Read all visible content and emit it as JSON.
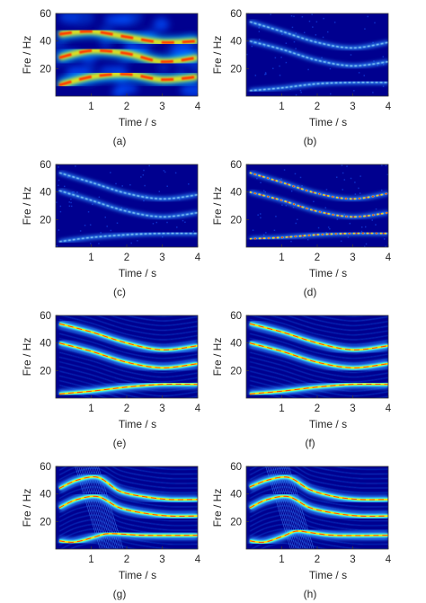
{
  "chart_data": [
    {
      "type": "heatmap",
      "panel_label": "(a)",
      "xlabel": "Time / s",
      "ylabel": "Fre / Hz",
      "xlim": [
        0,
        4
      ],
      "ylim": [
        0,
        60
      ],
      "xticks": [
        "1",
        "2",
        "3",
        "4"
      ],
      "yticks": [
        "20",
        "40",
        "60"
      ],
      "colormap": "jet",
      "style": "blurred",
      "components": [
        {
          "t": [
            0.1,
            1.0,
            2.0,
            3.0,
            4.0
          ],
          "f": [
            45,
            47,
            43,
            39,
            40
          ]
        },
        {
          "t": [
            0.1,
            1.0,
            2.0,
            3.0,
            4.0
          ],
          "f": [
            28,
            33,
            31,
            25,
            28
          ]
        },
        {
          "t": [
            0.1,
            1.0,
            2.0,
            3.0,
            4.0
          ],
          "f": [
            8,
            14,
            16,
            12,
            14
          ]
        }
      ]
    },
    {
      "type": "heatmap",
      "panel_label": "(b)",
      "xlabel": "Time / s",
      "ylabel": "Fre / Hz",
      "xlim": [
        0,
        4
      ],
      "ylim": [
        0,
        60
      ],
      "xticks": [
        "1",
        "2",
        "3",
        "4"
      ],
      "yticks": [
        "20",
        "40",
        "60"
      ],
      "colormap": "jet",
      "style": "faint",
      "components": [
        {
          "t": [
            0.1,
            1.0,
            2.0,
            3.0,
            4.0
          ],
          "f": [
            54,
            47,
            39,
            35,
            39
          ]
        },
        {
          "t": [
            0.1,
            1.0,
            2.0,
            3.0,
            4.0
          ],
          "f": [
            40,
            34,
            26,
            22,
            25
          ]
        },
        {
          "t": [
            0.1,
            1.0,
            2.0,
            3.0,
            4.0
          ],
          "f": [
            4,
            6,
            9,
            10,
            10
          ]
        }
      ]
    },
    {
      "type": "heatmap",
      "panel_label": "(c)",
      "xlabel": "Time / s",
      "ylabel": "Fre / Hz",
      "xlim": [
        0,
        4
      ],
      "ylim": [
        0,
        60
      ],
      "xticks": [
        "1",
        "2",
        "3",
        "4"
      ],
      "yticks": [
        "20",
        "40",
        "60"
      ],
      "colormap": "jet",
      "style": "faint",
      "components": [
        {
          "t": [
            0.1,
            1.0,
            2.0,
            3.0,
            4.0
          ],
          "f": [
            54,
            47,
            39,
            35,
            38
          ]
        },
        {
          "t": [
            0.1,
            1.0,
            2.0,
            3.0,
            4.0
          ],
          "f": [
            41,
            34,
            26,
            22,
            25
          ]
        },
        {
          "t": [
            0.1,
            1.0,
            2.0,
            3.0,
            4.0
          ],
          "f": [
            4,
            7,
            9,
            10,
            10
          ]
        }
      ]
    },
    {
      "type": "heatmap",
      "panel_label": "(d)",
      "xlabel": "Time / s",
      "ylabel": "Fre / Hz",
      "xlim": [
        0,
        4
      ],
      "ylim": [
        0,
        60
      ],
      "xticks": [
        "1",
        "2",
        "3",
        "4"
      ],
      "yticks": [
        "20",
        "40",
        "60"
      ],
      "colormap": "jet",
      "style": "dotted",
      "components": [
        {
          "t": [
            0.1,
            1.0,
            2.0,
            3.0,
            4.0
          ],
          "f": [
            54,
            47,
            39,
            35,
            39
          ]
        },
        {
          "t": [
            0.1,
            1.0,
            2.0,
            3.0,
            4.0
          ],
          "f": [
            40,
            34,
            26,
            22,
            25
          ]
        },
        {
          "t": [
            0.1,
            1.0,
            2.0,
            3.0,
            4.0
          ],
          "f": [
            6,
            7,
            9,
            10,
            10
          ]
        }
      ]
    },
    {
      "type": "heatmap",
      "panel_label": "(e)",
      "xlabel": "Time / s",
      "ylabel": "Fre / Hz",
      "xlim": [
        0,
        4
      ],
      "ylim": [
        0,
        60
      ],
      "xticks": [
        "1",
        "2",
        "3",
        "4"
      ],
      "yticks": [
        "20",
        "40",
        "60"
      ],
      "colormap": "jet",
      "style": "sharp",
      "components": [
        {
          "t": [
            0.1,
            1.0,
            2.0,
            3.0,
            4.0
          ],
          "f": [
            54,
            48,
            40,
            35,
            38
          ]
        },
        {
          "t": [
            0.1,
            1.0,
            2.0,
            3.0,
            4.0
          ],
          "f": [
            40,
            34,
            26,
            22,
            25
          ]
        },
        {
          "t": [
            0.1,
            1.0,
            2.0,
            3.0,
            4.0
          ],
          "f": [
            3,
            5,
            8,
            10,
            10
          ]
        }
      ]
    },
    {
      "type": "heatmap",
      "panel_label": "(f)",
      "xlabel": "Time / s",
      "ylabel": "Fre / Hz",
      "xlim": [
        0,
        4
      ],
      "ylim": [
        0,
        60
      ],
      "xticks": [
        "1",
        "2",
        "3",
        "4"
      ],
      "yticks": [
        "20",
        "40",
        "60"
      ],
      "colormap": "jet",
      "style": "sharp",
      "components": [
        {
          "t": [
            0.1,
            1.0,
            2.0,
            3.0,
            4.0
          ],
          "f": [
            54,
            48,
            40,
            35,
            38
          ]
        },
        {
          "t": [
            0.1,
            1.0,
            2.0,
            3.0,
            4.0
          ],
          "f": [
            40,
            34,
            26,
            22,
            25
          ]
        },
        {
          "t": [
            0.1,
            1.0,
            2.0,
            3.0,
            4.0
          ],
          "f": [
            3,
            5,
            8,
            10,
            10
          ]
        }
      ]
    },
    {
      "type": "heatmap",
      "panel_label": "(g)",
      "xlabel": "Time / s",
      "ylabel": "Fre / Hz",
      "xlim": [
        0,
        4
      ],
      "ylim": [
        0,
        60
      ],
      "xticks": [
        "1",
        "2",
        "3",
        "4"
      ],
      "yticks": [
        "20",
        "40",
        "60"
      ],
      "colormap": "jet",
      "style": "wavy",
      "components": [
        {
          "t": [
            0.1,
            0.6,
            1.2,
            1.8,
            2.5,
            3.2,
            4.0
          ],
          "f": [
            44,
            50,
            52,
            42,
            38,
            36,
            36
          ]
        },
        {
          "t": [
            0.1,
            0.6,
            1.2,
            1.8,
            2.5,
            3.2,
            4.0
          ],
          "f": [
            30,
            36,
            38,
            30,
            26,
            24,
            24
          ]
        },
        {
          "t": [
            0.1,
            0.5,
            1.0,
            1.4,
            1.8,
            2.5,
            4.0
          ],
          "f": [
            6,
            5,
            8,
            11,
            11,
            10,
            10
          ]
        }
      ]
    },
    {
      "type": "heatmap",
      "panel_label": "(h)",
      "xlabel": "Time / s",
      "ylabel": "Fre / Hz",
      "xlim": [
        0,
        4
      ],
      "ylim": [
        0,
        60
      ],
      "xticks": [
        "1",
        "2",
        "3",
        "4"
      ],
      "yticks": [
        "20",
        "40",
        "60"
      ],
      "colormap": "jet",
      "style": "wavy",
      "components": [
        {
          "t": [
            0.1,
            0.6,
            1.2,
            1.8,
            2.5,
            3.2,
            4.0
          ],
          "f": [
            45,
            50,
            52,
            43,
            38,
            36,
            36
          ]
        },
        {
          "t": [
            0.1,
            0.6,
            1.2,
            1.8,
            2.5,
            3.2,
            4.0
          ],
          "f": [
            30,
            36,
            38,
            30,
            26,
            24,
            24
          ]
        },
        {
          "t": [
            0.1,
            0.5,
            1.0,
            1.4,
            1.8,
            2.5,
            4.0
          ],
          "f": [
            6,
            5,
            9,
            13,
            12,
            10,
            10
          ]
        }
      ]
    }
  ]
}
